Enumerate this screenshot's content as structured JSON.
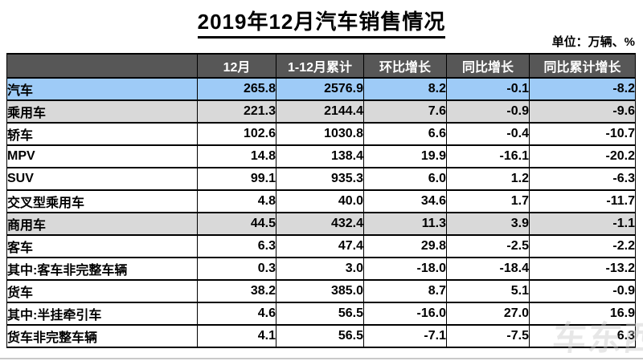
{
  "page": {
    "title": "2019年12月汽车销售情况",
    "unit_label": "单位：万辆、%",
    "watermark": "车东西"
  },
  "colors": {
    "header_bg": "#575757",
    "header_text": "#FFFFFF",
    "highlight_blue": "#9ECBF7",
    "highlight_gray": "#D9D9D9",
    "border": "#000000"
  },
  "table": {
    "columns": [
      "",
      "12月",
      "1-12月累计",
      "环比增长",
      "同比增长",
      "同比累计增长"
    ],
    "rows": [
      {
        "label": "汽车",
        "indent": 0,
        "highlight": "blue",
        "values": [
          "265.8",
          "2576.9",
          "8.2",
          "-0.1",
          "-8.2"
        ]
      },
      {
        "label": "乘用车",
        "indent": 1,
        "highlight": "gray",
        "values": [
          "221.3",
          "2144.4",
          "7.6",
          "-0.9",
          "-9.6"
        ]
      },
      {
        "label": "轿车",
        "indent": 2,
        "highlight": "none",
        "values": [
          "102.6",
          "1030.8",
          "6.6",
          "-0.4",
          "-10.7"
        ]
      },
      {
        "label": "MPV",
        "indent": 2,
        "highlight": "none",
        "values": [
          "14.8",
          "138.4",
          "19.9",
          "-16.1",
          "-20.2"
        ]
      },
      {
        "label": "SUV",
        "indent": 2,
        "highlight": "none",
        "values": [
          "99.1",
          "935.3",
          "6.0",
          "1.2",
          "-6.3"
        ]
      },
      {
        "label": "交叉型乘用车",
        "indent": 2,
        "highlight": "none",
        "values": [
          "4.8",
          "40.0",
          "34.6",
          "1.7",
          "-11.7"
        ]
      },
      {
        "label": "商用车",
        "indent": 1,
        "highlight": "gray",
        "values": [
          "44.5",
          "432.4",
          "11.3",
          "3.9",
          "-1.1"
        ]
      },
      {
        "label": "客车",
        "indent": 2,
        "highlight": "none",
        "values": [
          "6.3",
          "47.4",
          "29.8",
          "-2.5",
          "-2.2"
        ]
      },
      {
        "label": "其中:客车非完整车辆",
        "indent": 3,
        "highlight": "none",
        "values": [
          "0.3",
          "3.0",
          "-18.0",
          "-18.4",
          "-13.2"
        ]
      },
      {
        "label": "货车",
        "indent": 2,
        "highlight": "none",
        "values": [
          "38.2",
          "385.0",
          "8.7",
          "5.1",
          "-0.9"
        ]
      },
      {
        "label": "其中:半挂牵引车",
        "indent": 3,
        "highlight": "none",
        "values": [
          "4.6",
          "56.5",
          "-16.0",
          "27.0",
          "16.9"
        ]
      },
      {
        "label": "货车非完整车辆",
        "indent": 3,
        "highlight": "none",
        "values": [
          "4.1",
          "56.5",
          "-7.1",
          "-7.5",
          "6.3"
        ]
      }
    ]
  },
  "chart_data": {
    "type": "table",
    "title": "2019年12月汽车销售情况",
    "unit": "万辆、%",
    "columns": [
      "12月",
      "1-12月累计",
      "环比增长",
      "同比增长",
      "同比累计增长"
    ],
    "categories": [
      "汽车",
      "乘用车",
      "轿车",
      "MPV",
      "SUV",
      "交叉型乘用车",
      "商用车",
      "客车",
      "其中:客车非完整车辆",
      "货车",
      "其中:半挂牵引车",
      "货车非完整车辆"
    ],
    "series": [
      {
        "name": "12月",
        "values": [
          265.8,
          221.3,
          102.6,
          14.8,
          99.1,
          4.8,
          44.5,
          6.3,
          0.3,
          38.2,
          4.6,
          4.1
        ]
      },
      {
        "name": "1-12月累计",
        "values": [
          2576.9,
          2144.4,
          1030.8,
          138.4,
          935.3,
          40.0,
          432.4,
          47.4,
          3.0,
          385.0,
          56.5,
          56.5
        ]
      },
      {
        "name": "环比增长",
        "values": [
          8.2,
          7.6,
          6.6,
          19.9,
          6.0,
          34.6,
          11.3,
          29.8,
          -18.0,
          8.7,
          -16.0,
          -7.1
        ]
      },
      {
        "name": "同比增长",
        "values": [
          -0.1,
          -0.9,
          -0.4,
          -16.1,
          1.2,
          1.7,
          3.9,
          -2.5,
          -18.4,
          5.1,
          27.0,
          -7.5
        ]
      },
      {
        "name": "同比累计增长",
        "values": [
          -8.2,
          -9.6,
          -10.7,
          -20.2,
          -6.3,
          -11.7,
          -1.1,
          -2.2,
          -13.2,
          -0.9,
          16.9,
          6.3
        ]
      }
    ]
  }
}
